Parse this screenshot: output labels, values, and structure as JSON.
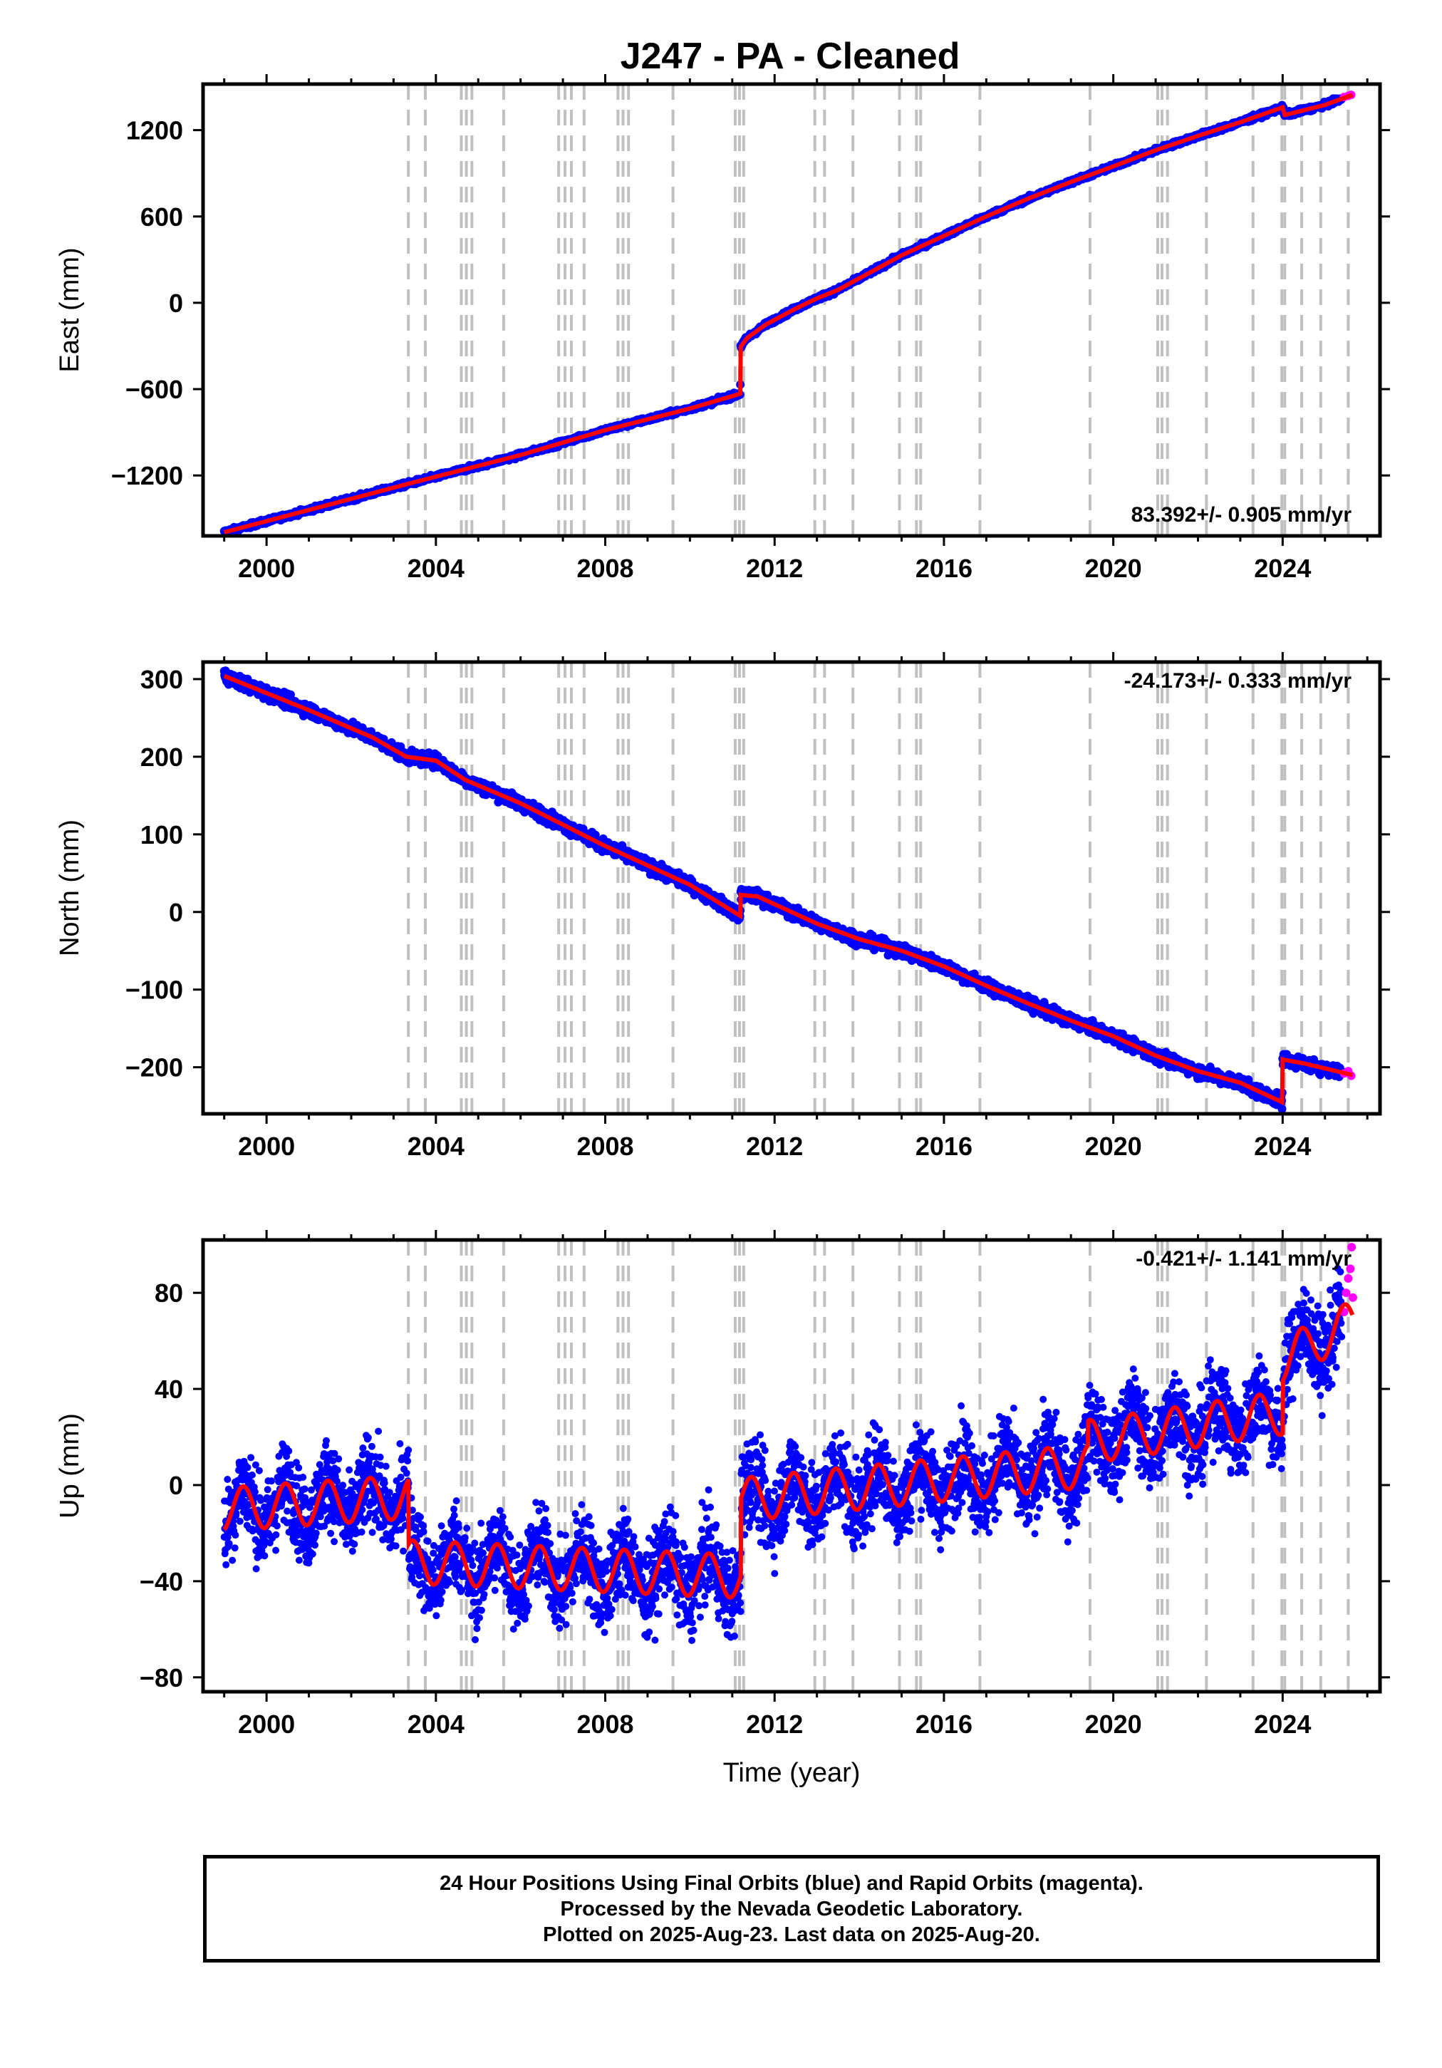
{
  "title": "J247  - PA - Cleaned",
  "colors": {
    "final_orbits": "#0000ff",
    "rapid_orbits": "#ff00ff",
    "model": "#ff0000",
    "breaks": "#c0c0c0"
  },
  "footer": {
    "line1": "24 Hour Positions Using Final Orbits (blue) and Rapid Orbits (magenta).",
    "line2": "Processed by the Nevada Geodetic Laboratory.",
    "line3": "Plotted on 2025-Aug-23. Last data on 2025-Aug-20."
  },
  "chart_data": [
    {
      "type": "scatter",
      "id": "east",
      "ylabel": "East (mm)",
      "xlabel": "",
      "rate_label": "83.392+/- 0.905 mm/yr",
      "xlim": [
        1998.5,
        2026.3
      ],
      "ylim": [
        -1620,
        1520
      ],
      "xticks": [
        2000,
        2004,
        2008,
        2012,
        2016,
        2020,
        2024
      ],
      "yticks": [
        1200,
        600,
        0,
        -600,
        -1200
      ],
      "ytick_labels": [
        "1200",
        "600",
        "0",
        "−600",
        "−1200"
      ],
      "model_points": [
        [
          1999.0,
          -1595
        ],
        [
          2003.45,
          -1250
        ],
        [
          2006.0,
          -1058
        ],
        [
          2008.0,
          -885
        ],
        [
          2010.0,
          -735
        ],
        [
          2011.19,
          -632
        ],
        [
          2011.2,
          -305
        ],
        [
          2011.35,
          -245
        ],
        [
          2011.8,
          -150
        ],
        [
          2012.5,
          -40
        ],
        [
          2013.0,
          30
        ],
        [
          2013.5,
          90
        ],
        [
          2014.0,
          170
        ],
        [
          2015.0,
          330
        ],
        [
          2016.0,
          465
        ],
        [
          2017.0,
          600
        ],
        [
          2018.0,
          725
        ],
        [
          2019.0,
          840
        ],
        [
          2020.0,
          948
        ],
        [
          2021.0,
          1060
        ],
        [
          2022.0,
          1160
        ],
        [
          2023.0,
          1255
        ],
        [
          2024.0,
          1358
        ],
        [
          2024.05,
          1305
        ],
        [
          2025.0,
          1375
        ],
        [
          2025.65,
          1445
        ]
      ],
      "data_noise_mm": 8,
      "rapid_points": [
        [
          2025.45,
          1430
        ],
        [
          2025.55,
          1438
        ],
        [
          2025.62,
          1445
        ]
      ]
    },
    {
      "type": "scatter",
      "id": "north",
      "ylabel": "North (mm)",
      "xlabel": "",
      "rate_label": "-24.173+/- 0.333 mm/yr",
      "xlim": [
        1998.5,
        2026.3
      ],
      "ylim": [
        -260,
        322
      ],
      "xticks": [
        2000,
        2004,
        2008,
        2012,
        2016,
        2020,
        2024
      ],
      "yticks": [
        300,
        200,
        100,
        0,
        -100,
        -200
      ],
      "ytick_labels": [
        "300",
        "200",
        "100",
        "0",
        "−100",
        "−200"
      ],
      "model_points": [
        [
          1999.0,
          304
        ],
        [
          2001.0,
          260
        ],
        [
          2002.5,
          225
        ],
        [
          2003.3,
          200
        ],
        [
          2004.0,
          195
        ],
        [
          2004.7,
          170
        ],
        [
          2006.0,
          140
        ],
        [
          2008.0,
          85
        ],
        [
          2010.0,
          35
        ],
        [
          2011.19,
          -5
        ],
        [
          2011.2,
          22
        ],
        [
          2011.6,
          20
        ],
        [
          2013.0,
          -15
        ],
        [
          2014.0,
          -35
        ],
        [
          2015.0,
          -50
        ],
        [
          2016.0,
          -70
        ],
        [
          2017.0,
          -95
        ],
        [
          2018.0,
          -118
        ],
        [
          2019.0,
          -140
        ],
        [
          2020.0,
          -160
        ],
        [
          2021.0,
          -185
        ],
        [
          2022.0,
          -205
        ],
        [
          2023.0,
          -220
        ],
        [
          2023.99,
          -245
        ],
        [
          2024.0,
          -190
        ],
        [
          2024.5,
          -195
        ],
        [
          2025.65,
          -210
        ]
      ],
      "data_noise_mm": 4,
      "rapid_points": [
        [
          2025.45,
          -208
        ],
        [
          2025.55,
          -205
        ],
        [
          2025.62,
          -211
        ]
      ]
    },
    {
      "type": "scatter",
      "id": "up",
      "ylabel": "Up (mm)",
      "xlabel": "Time (year)",
      "rate_label": "-0.421+/- 1.141 mm/yr",
      "xlim": [
        1998.5,
        2026.3
      ],
      "ylim": [
        -86,
        102
      ],
      "xticks": [
        2000,
        2004,
        2008,
        2012,
        2016,
        2020,
        2024
      ],
      "yticks": [
        80,
        40,
        0,
        -40,
        -80
      ],
      "ytick_labels": [
        "80",
        "40",
        "0",
        "−40",
        "−80"
      ],
      "model_points": [
        [
          1999.0,
          -10
        ],
        [
          2003.35,
          -5
        ],
        [
          2003.36,
          -32
        ],
        [
          2011.2,
          -38
        ],
        [
          2011.21,
          -6
        ],
        [
          2019.4,
          8
        ],
        [
          2019.41,
          18
        ],
        [
          2024.0,
          30
        ],
        [
          2024.01,
          52
        ],
        [
          2025.65,
          68
        ]
      ],
      "seasonal_amplitude_mm": 9,
      "data_noise_mm": 9,
      "rapid_points": [
        [
          2025.45,
          72
        ],
        [
          2025.5,
          80
        ],
        [
          2025.55,
          86
        ],
        [
          2025.6,
          90
        ],
        [
          2025.63,
          99
        ],
        [
          2025.66,
          78
        ]
      ]
    }
  ],
  "break_years": [
    2003.35,
    2003.75,
    2004.6,
    2004.72,
    2004.85,
    2005.6,
    2006.9,
    2007.05,
    2007.2,
    2007.5,
    2008.3,
    2008.42,
    2008.55,
    2009.6,
    2011.07,
    2011.17,
    2011.27,
    2012.95,
    2013.18,
    2013.85,
    2014.95,
    2015.35,
    2015.45,
    2016.85,
    2019.45,
    2021.05,
    2021.15,
    2021.28,
    2022.2,
    2023.3,
    2023.98,
    2024.05,
    2024.45,
    2024.9,
    2025.55
  ]
}
